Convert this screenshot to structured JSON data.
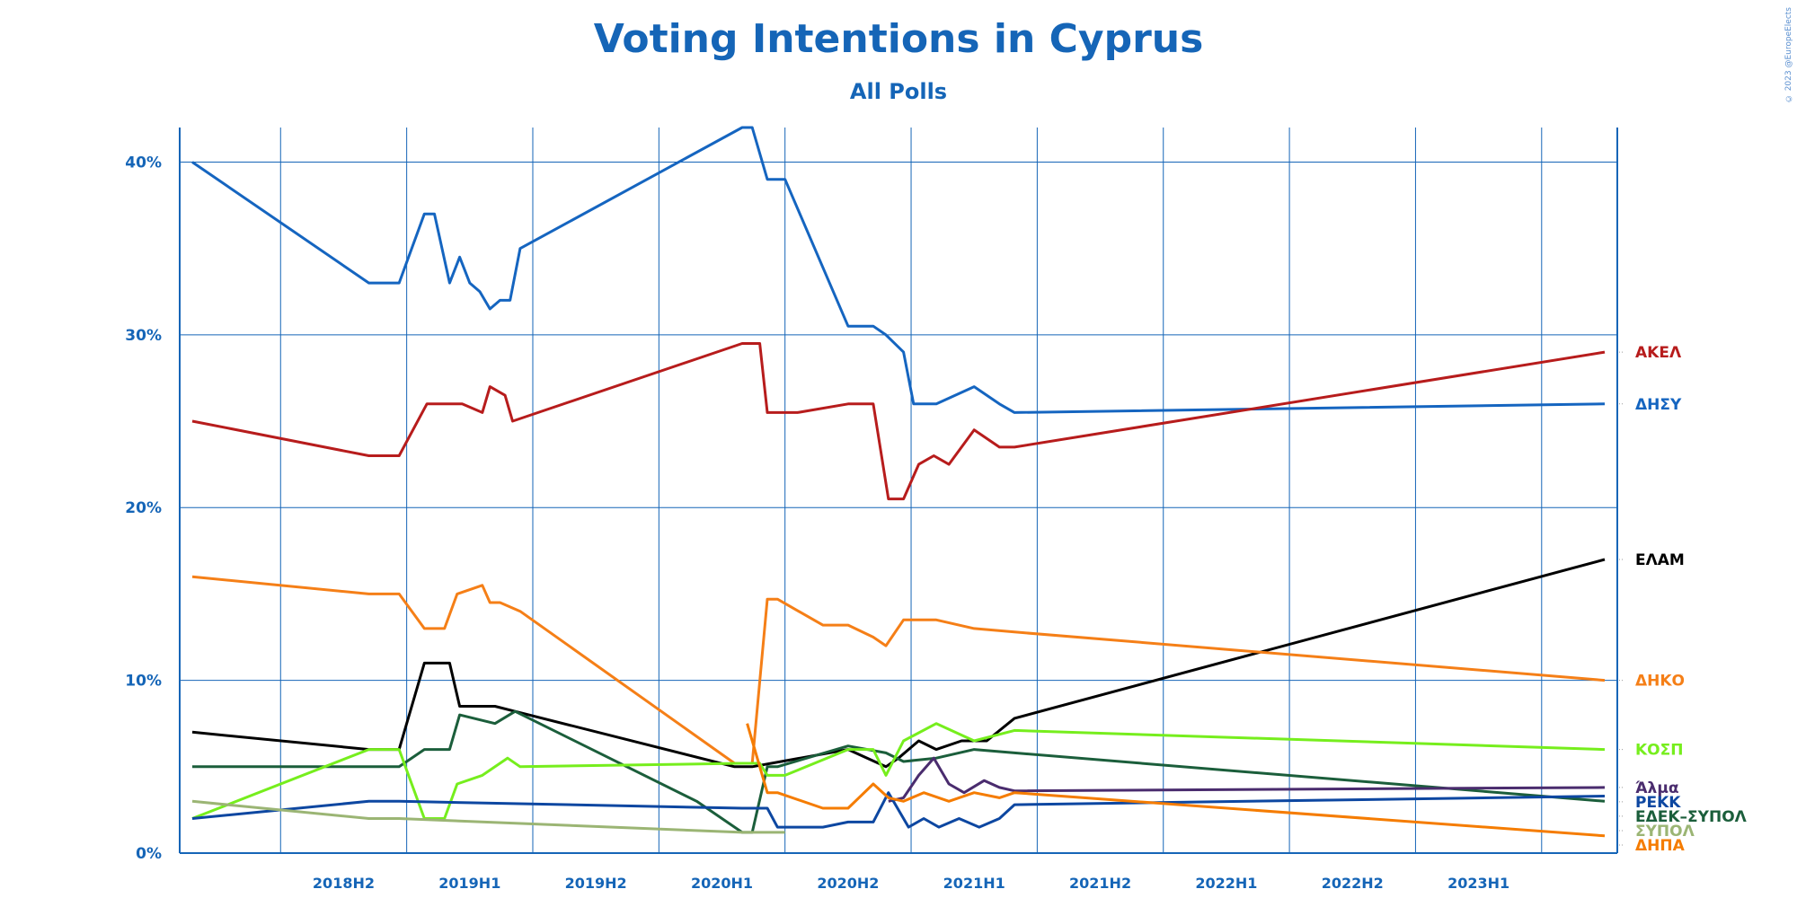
{
  "chart_data": {
    "type": "line",
    "title": "Voting Intentions in Cyprus",
    "subtitle": "All Polls",
    "copyright": "© 2023 @EuropeElects",
    "xlabel": "",
    "ylabel": "",
    "xlim": [
      2017.85,
      2023.55
    ],
    "ylim": [
      0,
      42
    ],
    "y_ticks": [
      0,
      10,
      20,
      30,
      40
    ],
    "y_tick_labels": [
      "0%",
      "10%",
      "20%",
      "30%",
      "40%"
    ],
    "x_ticks": [
      2018.5,
      2019.0,
      2019.5,
      2020.0,
      2020.5,
      2021.0,
      2021.5,
      2022.0,
      2022.5,
      2023.0
    ],
    "x_tick_labels": [
      "2018H2",
      "2019H1",
      "2019H2",
      "2020H1",
      "2020H2",
      "2021H1",
      "2021H2",
      "2022H1",
      "2022H2",
      "2023H1"
    ],
    "grid": true,
    "legend": "right-end labels",
    "series": [
      {
        "name": "ΔΗΣΥ",
        "color": "#1565c0",
        "x": [
          2017.9,
          2018.6,
          2018.72,
          2018.82,
          2018.86,
          2018.92,
          2018.96,
          2019.0,
          2019.04,
          2019.08,
          2019.12,
          2019.16,
          2019.2,
          2020.08,
          2020.12,
          2020.18,
          2020.25,
          2020.5,
          2020.6,
          2020.65,
          2020.72,
          2020.76,
          2020.85,
          2021.0,
          2021.1,
          2021.16,
          2023.5
        ],
        "y": [
          40,
          33,
          33,
          37,
          37,
          33,
          34.5,
          33,
          32.5,
          31.5,
          32,
          32,
          35,
          42,
          42,
          39,
          39,
          30.5,
          30.5,
          30,
          29,
          26,
          26,
          27,
          26,
          25.5,
          26
        ]
      },
      {
        "name": "ΑΚΕΛ",
        "color": "#b71c1c",
        "x": [
          2017.9,
          2018.6,
          2018.72,
          2018.83,
          2018.97,
          2019.05,
          2019.08,
          2019.14,
          2019.17,
          2020.08,
          2020.15,
          2020.18,
          2020.3,
          2020.5,
          2020.6,
          2020.66,
          2020.72,
          2020.78,
          2020.84,
          2020.9,
          2021.0,
          2021.1,
          2021.16,
          2023.5
        ],
        "y": [
          25,
          23,
          23,
          26,
          26,
          25.5,
          27,
          26.5,
          25,
          29.5,
          29.5,
          25.5,
          25.5,
          26,
          26,
          20.5,
          20.5,
          22.5,
          23,
          22.5,
          24.5,
          23.5,
          23.5,
          29
        ]
      },
      {
        "name": "ΕΛΑΜ",
        "color": "#000000",
        "x": [
          2017.9,
          2018.6,
          2018.72,
          2018.82,
          2018.92,
          2018.96,
          2019.1,
          2019.18,
          2020.05,
          2020.12,
          2020.5,
          2020.65,
          2020.7,
          2020.78,
          2020.85,
          2020.95,
          2021.05,
          2021.16,
          2023.5
        ],
        "y": [
          7,
          6,
          6,
          11,
          11,
          8.5,
          8.5,
          8.2,
          5,
          5,
          6,
          5,
          5.5,
          6.5,
          6,
          6.5,
          6.5,
          7.8,
          17
        ]
      },
      {
        "name": "ΔΗΚΟ",
        "color": "#f57f17",
        "x": [
          2017.9,
          2018.6,
          2018.72,
          2018.82,
          2018.9,
          2018.95,
          2019.05,
          2019.08,
          2019.12,
          2019.2,
          2020.05,
          2020.12,
          2020.18,
          2020.22,
          2020.4,
          2020.5,
          2020.6,
          2020.65,
          2020.72,
          2020.85,
          2021.0,
          2021.16,
          2023.5
        ],
        "y": [
          16,
          15,
          15,
          13,
          13,
          15,
          15.5,
          14.5,
          14.5,
          14,
          5.2,
          5.2,
          14.7,
          14.7,
          13.2,
          13.2,
          12.5,
          12,
          13.5,
          13.5,
          13,
          12.8,
          10
        ]
      },
      {
        "name": "ΕΔΕΚ–ΣΥΠΟΛ",
        "color": "#1b5e3b",
        "x": [
          2017.9,
          2018.6,
          2018.72,
          2018.82,
          2018.92,
          2018.96,
          2019.1,
          2019.18,
          2019.9,
          2020.08,
          2020.12,
          2020.18,
          2020.22,
          2020.5,
          2020.65,
          2020.72,
          2020.85,
          2021.0,
          2021.16,
          2023.5
        ],
        "y": [
          5,
          5,
          5,
          6,
          6,
          8,
          7.5,
          8.2,
          3,
          1.2,
          1.2,
          5,
          5,
          6.2,
          5.8,
          5.3,
          5.5,
          6,
          5.8,
          3
        ]
      },
      {
        "name": "ΚΟΣΠ",
        "color": "#76ee1d",
        "x": [
          2017.9,
          2018.6,
          2018.72,
          2018.82,
          2018.9,
          2018.95,
          2019.05,
          2019.15,
          2019.2,
          2020.08,
          2020.15,
          2020.18,
          2020.25,
          2020.5,
          2020.6,
          2020.65,
          2020.72,
          2020.85,
          2021.0,
          2021.16,
          2023.5
        ],
        "y": [
          2,
          6,
          6,
          2,
          2,
          4,
          4.5,
          5.5,
          5,
          5.2,
          5.2,
          4.5,
          4.5,
          6,
          6,
          4.5,
          6.5,
          7.5,
          6.5,
          7.1,
          6
        ]
      },
      {
        "name": "Άλμα",
        "color": "#4a2c6e",
        "x": [
          2020.66,
          2020.72,
          2020.78,
          2020.84,
          2020.9,
          2020.96,
          2021.04,
          2021.1,
          2021.16,
          2023.5
        ],
        "y": [
          3,
          3.2,
          4.5,
          5.5,
          4,
          3.5,
          4.2,
          3.8,
          3.6,
          3.8
        ]
      },
      {
        "name": "ΡΕΚΚ",
        "color": "#0d47a1",
        "x": [
          2017.9,
          2018.6,
          2018.72,
          2020.08,
          2020.18,
          2020.22,
          2020.4,
          2020.5,
          2020.6,
          2020.66,
          2020.74,
          2020.8,
          2020.86,
          2020.94,
          2021.02,
          2021.1,
          2021.16,
          2023.5
        ],
        "y": [
          2,
          3,
          3,
          2.6,
          2.6,
          1.5,
          1.5,
          1.8,
          1.8,
          3.5,
          1.5,
          2,
          1.5,
          2,
          1.5,
          2,
          2.8,
          3.3
        ]
      },
      {
        "name": "ΣΥΠΟΛ",
        "color": "#9bb574",
        "x": [
          2017.9,
          2018.6,
          2018.72,
          2020.08,
          2020.2,
          2020.25
        ],
        "y": [
          3,
          2,
          2,
          1.2,
          1.2,
          1.2
        ],
        "end": [
          2023.5,
          1.3
        ]
      },
      {
        "name": "ΔΗΠΑ",
        "color": "#f57c00",
        "x": [
          2020.1,
          2020.18,
          2020.22,
          2020.4,
          2020.5,
          2020.6,
          2020.66,
          2020.72,
          2020.8,
          2020.9,
          2021.0,
          2021.1,
          2021.16,
          2023.5
        ],
        "y": [
          7.5,
          3.5,
          3.5,
          2.6,
          2.6,
          4,
          3.2,
          3,
          3.5,
          3,
          3.5,
          3.2,
          3.5,
          1
        ]
      }
    ]
  }
}
